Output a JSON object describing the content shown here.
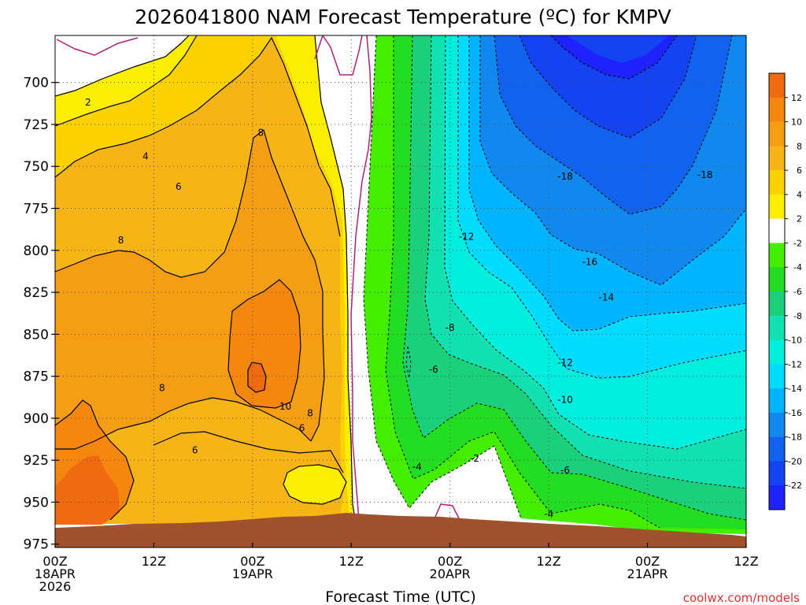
{
  "chart_data": {
    "type": "heatmap",
    "title": "2026041800 NAM Forecast Temperature (ºC) for KMPV",
    "xlabel": "Forecast Time (UTC)",
    "ylabel": "",
    "x_ticks": [
      {
        "hour": 0,
        "lines": [
          "00Z",
          "18APR",
          "2026"
        ]
      },
      {
        "hour": 12,
        "lines": [
          "12Z"
        ]
      },
      {
        "hour": 24,
        "lines": [
          "00Z",
          "19APR"
        ]
      },
      {
        "hour": 36,
        "lines": [
          "12Z"
        ]
      },
      {
        "hour": 48,
        "lines": [
          "00Z",
          "20APR"
        ]
      },
      {
        "hour": 60,
        "lines": [
          "12Z"
        ]
      },
      {
        "hour": 72,
        "lines": [
          "00Z",
          "21APR"
        ]
      },
      {
        "hour": 84,
        "lines": [
          "12Z"
        ]
      }
    ],
    "xlim": [
      0,
      84
    ],
    "y_ticks": [
      700,
      725,
      750,
      775,
      800,
      825,
      850,
      875,
      900,
      925,
      950,
      975
    ],
    "ylim": [
      977,
      672
    ],
    "grid": true,
    "surface_color": "#a0522d",
    "freezing_line_color": "#b0207a",
    "colorbar": {
      "placement": "right",
      "levels": [
        12,
        10,
        8,
        6,
        4,
        2,
        -2,
        -4,
        -6,
        -8,
        -10,
        -12,
        -14,
        -16,
        -18,
        -20,
        -22
      ],
      "colors": [
        "#f06a10",
        "#f5860e",
        "#f59e14",
        "#f7b416",
        "#fbd200",
        "#fbee00",
        "#ffffff",
        "#44ee00",
        "#22dd22",
        "#1ad07a",
        "#11e0b0",
        "#00eedd",
        "#00dcff",
        "#00b4ff",
        "#1188ee",
        "#1163ef",
        "#1443f2",
        "#1e22ff"
      ],
      "labels": [
        "12",
        "10",
        "8",
        "6",
        "4",
        "2",
        "-2",
        "-4",
        "-6",
        "-8",
        "-10",
        "-12",
        "-14",
        "-16",
        "-18",
        "-20",
        "-22"
      ]
    },
    "contour_labels": [
      {
        "text": "2",
        "hour": 4,
        "p": 712
      },
      {
        "text": "4",
        "hour": 11,
        "p": 744
      },
      {
        "text": "6",
        "hour": 15,
        "p": 762
      },
      {
        "text": "8",
        "hour": 8,
        "p": 794
      },
      {
        "text": "8",
        "hour": 25,
        "p": 730
      },
      {
        "text": "8",
        "hour": 13,
        "p": 882
      },
      {
        "text": "8",
        "hour": 31,
        "p": 897
      },
      {
        "text": "10",
        "hour": 28,
        "p": 893
      },
      {
        "text": "6",
        "hour": 30,
        "p": 906
      },
      {
        "text": "6",
        "hour": 17,
        "p": 919
      },
      {
        "text": "-4",
        "hour": 44,
        "p": 929
      },
      {
        "text": "-2",
        "hour": 51,
        "p": 924
      },
      {
        "text": "-6",
        "hour": 46,
        "p": 871
      },
      {
        "text": "-8",
        "hour": 48,
        "p": 846
      },
      {
        "text": "-12",
        "hour": 50,
        "p": 792
      },
      {
        "text": "-18",
        "hour": 62,
        "p": 756
      },
      {
        "text": "-18",
        "hour": 79,
        "p": 755
      },
      {
        "text": "-16",
        "hour": 65,
        "p": 807
      },
      {
        "text": "-14",
        "hour": 67,
        "p": 828
      },
      {
        "text": "-12",
        "hour": 62,
        "p": 867
      },
      {
        "text": "-10",
        "hour": 62,
        "p": 889
      },
      {
        "text": "-6",
        "hour": 62,
        "p": 931
      },
      {
        "text": "-4",
        "hour": 60,
        "p": 957
      }
    ]
  },
  "credit": "coolwx.com/models"
}
